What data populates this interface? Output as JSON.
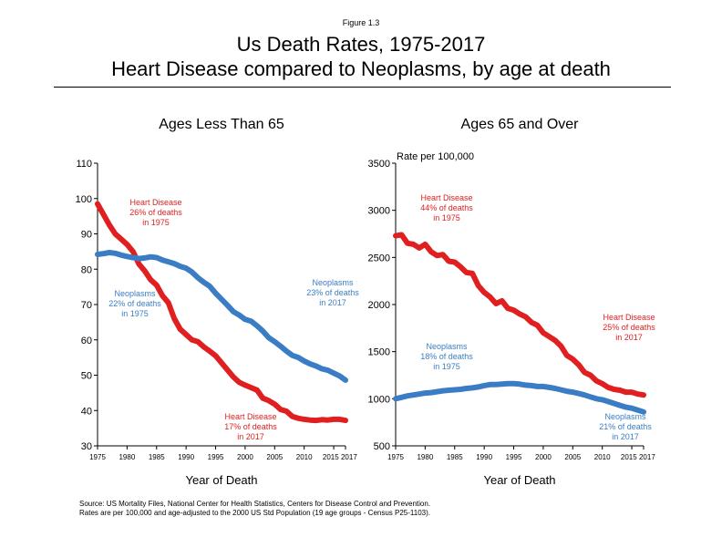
{
  "figure_label": "Figure 1.3",
  "title_line1": "Us Death Rates, 1975-2017",
  "title_line2": "Heart Disease compared to Neoplasms, by age at death",
  "footnote_line1": "Source: US Mortality Files, National Center for Health Statistics, Centers for Disease Control and Prevention.",
  "footnote_line2": "Rates are per 100,000 and age-adjusted to the 2000 US Std Population (19 age groups - Census P25-1103).",
  "colors": {
    "heart": "#e02020",
    "neo": "#3a7dc4"
  },
  "chart_data": [
    {
      "type": "line",
      "title": "Ages Less Than 65",
      "xlabel": "Year of Death",
      "ylabel": "",
      "xlim": [
        1975,
        2017
      ],
      "ylim": [
        30,
        110
      ],
      "x_ticks": [
        "1975",
        "1980",
        "1985",
        "1990",
        "1995",
        "2000",
        "2005",
        "2010",
        "2015",
        "2017"
      ],
      "y_ticks": [
        "30",
        "40",
        "50",
        "60",
        "70",
        "80",
        "90",
        "100",
        "110"
      ],
      "x": [
        1975,
        1976,
        1977,
        1978,
        1979,
        1980,
        1981,
        1982,
        1983,
        1984,
        1985,
        1986,
        1987,
        1988,
        1989,
        1990,
        1991,
        1992,
        1993,
        1994,
        1995,
        1996,
        1997,
        1998,
        1999,
        2000,
        2001,
        2002,
        2003,
        2004,
        2005,
        2006,
        2007,
        2008,
        2009,
        2010,
        2011,
        2012,
        2013,
        2014,
        2015,
        2016,
        2017
      ],
      "series": [
        {
          "name": "Heart Disease",
          "color": "#e02020",
          "values": [
            98.5,
            95.5,
            92.5,
            90.0,
            88.5,
            87.0,
            85.0,
            81.5,
            79.5,
            77.0,
            75.5,
            72.5,
            70.5,
            66.0,
            63.0,
            61.5,
            60.0,
            59.5,
            58.0,
            56.8,
            55.5,
            53.5,
            51.5,
            49.5,
            48.0,
            47.2,
            46.5,
            45.8,
            43.5,
            42.8,
            41.8,
            40.3,
            39.8,
            38.3,
            37.8,
            37.5,
            37.3,
            37.2,
            37.4,
            37.3,
            37.5,
            37.5,
            37.2
          ]
        },
        {
          "name": "Neoplasms",
          "color": "#3a7dc4",
          "values": [
            84.2,
            84.4,
            84.7,
            84.5,
            84.0,
            83.6,
            83.3,
            83.0,
            83.2,
            83.5,
            83.3,
            82.6,
            82.1,
            81.6,
            80.8,
            80.3,
            79.2,
            77.6,
            76.3,
            75.2,
            73.2,
            71.5,
            69.8,
            68.0,
            67.0,
            65.8,
            65.3,
            64.0,
            62.5,
            60.6,
            59.5,
            58.2,
            56.8,
            55.6,
            55.0,
            54.0,
            53.2,
            52.6,
            51.8,
            51.4,
            50.6,
            49.8,
            48.6
          ]
        }
      ],
      "annotations": [
        {
          "lines": [
            "Heart Disease",
            "26%  of deaths",
            "in 1975"
          ],
          "color": "#e02020"
        },
        {
          "lines": [
            "Neoplasms",
            "22%  of deaths",
            "in 1975"
          ],
          "color": "#3a7dc4"
        },
        {
          "lines": [
            "Neoplasms",
            "23%  of deaths",
            "in 2017"
          ],
          "color": "#3a7dc4"
        },
        {
          "lines": [
            "Heart Disease",
            "17%  of deaths",
            "in 2017"
          ],
          "color": "#e02020"
        }
      ]
    },
    {
      "type": "line",
      "title": "Ages 65 and Over",
      "xlabel": "Year of Death",
      "ylabel": "Rate per 100,000",
      "xlim": [
        1975,
        2017
      ],
      "ylim": [
        500,
        3500
      ],
      "x_ticks": [
        "1975",
        "1980",
        "1985",
        "1990",
        "1995",
        "2000",
        "2005",
        "2010",
        "2015",
        "2017"
      ],
      "y_ticks": [
        "500",
        "1000",
        "1500",
        "2000",
        "2500",
        "3000",
        "3500"
      ],
      "x": [
        1975,
        1976,
        1977,
        1978,
        1979,
        1980,
        1981,
        1982,
        1983,
        1984,
        1985,
        1986,
        1987,
        1988,
        1989,
        1990,
        1991,
        1992,
        1993,
        1994,
        1995,
        1996,
        1997,
        1998,
        1999,
        2000,
        2001,
        2002,
        2003,
        2004,
        2005,
        2006,
        2007,
        2008,
        2009,
        2010,
        2011,
        2012,
        2013,
        2014,
        2015,
        2016,
        2017
      ],
      "series": [
        {
          "name": "Heart Disease",
          "color": "#e02020",
          "values": [
            2730,
            2740,
            2650,
            2640,
            2600,
            2640,
            2560,
            2520,
            2530,
            2460,
            2450,
            2400,
            2340,
            2330,
            2200,
            2130,
            2080,
            2010,
            2040,
            1960,
            1940,
            1900,
            1870,
            1810,
            1780,
            1700,
            1660,
            1620,
            1560,
            1460,
            1420,
            1360,
            1280,
            1250,
            1190,
            1160,
            1120,
            1100,
            1090,
            1070,
            1070,
            1050,
            1040
          ]
        },
        {
          "name": "Neoplasms",
          "color": "#3a7dc4",
          "values": [
            1000,
            1015,
            1030,
            1040,
            1050,
            1060,
            1065,
            1075,
            1085,
            1090,
            1095,
            1100,
            1110,
            1115,
            1125,
            1140,
            1150,
            1150,
            1155,
            1160,
            1160,
            1155,
            1145,
            1140,
            1130,
            1130,
            1120,
            1110,
            1095,
            1080,
            1070,
            1055,
            1040,
            1020,
            1000,
            990,
            970,
            950,
            930,
            910,
            900,
            880,
            860
          ]
        }
      ],
      "annotations": [
        {
          "lines": [
            "Heart Disease",
            "44%  of deaths",
            "in 1975"
          ],
          "color": "#e02020"
        },
        {
          "lines": [
            "Neoplasms",
            "18%  of deaths",
            "in 1975"
          ],
          "color": "#3a7dc4"
        },
        {
          "lines": [
            "Heart Disease",
            "25%  of deaths",
            "in 2017"
          ],
          "color": "#e02020"
        },
        {
          "lines": [
            "Neoplasms",
            "21%  of deaths",
            "in 2017"
          ],
          "color": "#3a7dc4"
        }
      ]
    }
  ]
}
